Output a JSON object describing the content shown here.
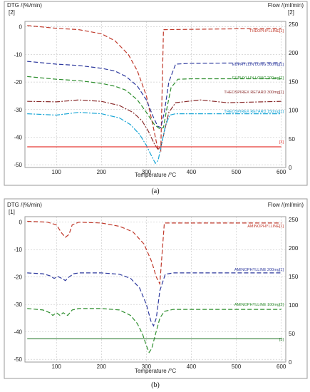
{
  "chart_data": [
    {
      "panel_label": "(a)",
      "type": "line",
      "y_left_title": "DTG /(%/min)",
      "y_left_marker": "[2]",
      "y_right_title": "Flow /(ml/min)",
      "y_right_marker": "[2]",
      "x_title": "Temperature /°C",
      "x_ticks": [
        "100",
        "200",
        "300",
        "400",
        "500",
        "600"
      ],
      "y_left_ticks": [
        "0",
        "-10",
        "-20",
        "-30",
        "-40",
        "-50"
      ],
      "y_right_ticks": [
        "250",
        "200",
        "150",
        "100",
        "50",
        "0"
      ],
      "xlim": [
        30,
        610
      ],
      "ylim": [
        -51,
        2
      ],
      "y_right_lim": [
        0,
        255
      ],
      "grid": true,
      "series": [
        {
          "name": "THEOPHYLLINE[1]",
          "color": "#c0392b",
          "dash": "6,3",
          "x": [
            35,
            100,
            150,
            200,
            230,
            260,
            280,
            300,
            315,
            325,
            332,
            338,
            600
          ],
          "y": [
            0.5,
            -0.5,
            -1.0,
            -2.5,
            -5,
            -10,
            -16,
            -25,
            -36,
            -44,
            -45,
            -1,
            -0.5
          ]
        },
        {
          "name": "EUPHYLLIN LONG 300mg[1]",
          "color": "#2e3a9e",
          "dash": "6,3",
          "x": [
            35,
            100,
            150,
            200,
            230,
            255,
            280,
            300,
            315,
            325,
            332,
            340,
            350,
            365,
            400,
            600
          ],
          "y": [
            -12.5,
            -13.5,
            -14.0,
            -15.0,
            -16.0,
            -18.0,
            -21.5,
            -26.5,
            -32.5,
            -36.0,
            -36.5,
            -31.0,
            -20.0,
            -13.5,
            -13.2,
            -13.0
          ]
        },
        {
          "name": "EUPHYLLIN LONG 200mg[1]",
          "color": "#2f8f2f",
          "dash": "6,3",
          "x": [
            35,
            100,
            150,
            200,
            230,
            255,
            280,
            300,
            318,
            330,
            338,
            345,
            355,
            370,
            400,
            600
          ],
          "y": [
            -18.0,
            -19.0,
            -19.5,
            -20.5,
            -21.5,
            -23.0,
            -26.5,
            -31.0,
            -35.5,
            -37.0,
            -36.5,
            -30.0,
            -22.0,
            -19.0,
            -18.8,
            -18.8
          ]
        },
        {
          "name": "THEOSPIREX RETARD 300mg[1]",
          "color": "#8b2e2e",
          "dash": "7,2,2,2",
          "x": [
            35,
            100,
            150,
            200,
            240,
            270,
            290,
            305,
            318,
            326,
            333,
            340,
            350,
            365,
            420,
            480,
            600
          ],
          "y": [
            -27.0,
            -27.2,
            -26.5,
            -27.0,
            -28.5,
            -31.0,
            -34.0,
            -38.0,
            -42.5,
            -44.5,
            -43.0,
            -38.0,
            -31.0,
            -27.5,
            -26.5,
            -27.5,
            -27.0
          ]
        },
        {
          "name": "THEOSPIREX RETARD 150mg[1]",
          "color": "#1aa6d6",
          "dash": "7,2,2,2",
          "x": [
            35,
            100,
            150,
            200,
            240,
            265,
            285,
            300,
            312,
            320,
            326,
            334,
            342,
            352,
            365,
            420,
            600
          ],
          "y": [
            -31.5,
            -32.0,
            -31.0,
            -31.5,
            -33.0,
            -35.5,
            -39.0,
            -43.0,
            -47.0,
            -49.5,
            -48.5,
            -42.5,
            -36.0,
            -32.0,
            -31.5,
            -31.5,
            -31.5
          ]
        },
        {
          "name": "[3]",
          "color": "#e53935",
          "dash": "",
          "x": [
            35,
            600
          ],
          "y": [
            -43.5,
            -43.5
          ]
        }
      ]
    },
    {
      "panel_label": "(b)",
      "type": "line",
      "y_left_title": "DTG /(%/min)",
      "y_left_marker": "[1]",
      "y_right_title": "Flow /(ml/min)",
      "y_right_marker": "",
      "x_title": "Temperature /°C",
      "x_ticks": [
        "100",
        "200",
        "300",
        "400",
        "500",
        "600"
      ],
      "y_left_ticks": [
        "0",
        "-10",
        "-20",
        "-30",
        "-40",
        "-50"
      ],
      "y_right_ticks": [
        "250",
        "200",
        "150",
        "100",
        "50",
        "0"
      ],
      "xlim": [
        30,
        610
      ],
      "ylim": [
        -51,
        2
      ],
      "y_right_lim": [
        0,
        255
      ],
      "grid": true,
      "series": [
        {
          "name": "AMINOPHYLLINE[1]",
          "color": "#c0392b",
          "dash": "6,3",
          "x": [
            35,
            80,
            100,
            112,
            120,
            128,
            135,
            150,
            200,
            240,
            270,
            295,
            312,
            322,
            330,
            340,
            600
          ],
          "y": [
            0.3,
            0.0,
            -1.0,
            -4.0,
            -5.5,
            -4.5,
            -1.0,
            0.0,
            -0.3,
            -1.5,
            -3.5,
            -8.0,
            -14.5,
            -20.0,
            -22.5,
            -0.3,
            -0.3
          ]
        },
        {
          "name": "AMINOPHYLLINE 200mg[1]",
          "color": "#2e3a9e",
          "dash": "6,3",
          "x": [
            35,
            70,
            85,
            95,
            103,
            112,
            120,
            128,
            138,
            150,
            200,
            240,
            265,
            285,
            300,
            310,
            316,
            322,
            330,
            342,
            360,
            600
          ],
          "y": [
            -18.5,
            -18.8,
            -19.5,
            -20.5,
            -19.8,
            -20.5,
            -21.3,
            -20.0,
            -18.8,
            -18.5,
            -18.5,
            -19.0,
            -20.5,
            -24.0,
            -30.0,
            -36.0,
            -37.8,
            -35.0,
            -25.0,
            -19.0,
            -18.5,
            -18.5
          ]
        },
        {
          "name": "AMINOPHYLLINE 100mg[2]",
          "color": "#2f8f2f",
          "dash": "6,3",
          "x": [
            35,
            70,
            85,
            92,
            100,
            108,
            115,
            125,
            135,
            150,
            200,
            240,
            265,
            280,
            292,
            300,
            306,
            312,
            320,
            330,
            340,
            360,
            600
          ],
          "y": [
            -31.5,
            -32.0,
            -33.0,
            -34.0,
            -33.0,
            -34.0,
            -33.0,
            -34.0,
            -32.0,
            -31.5,
            -31.5,
            -32.0,
            -34.0,
            -37.0,
            -41.0,
            -45.0,
            -47.5,
            -46.0,
            -41.0,
            -35.0,
            -32.5,
            -31.8,
            -31.8
          ]
        },
        {
          "name": "[3]",
          "color": "#2e7d32",
          "dash": "",
          "x": [
            35,
            600
          ],
          "y": [
            -42.5,
            -42.5
          ]
        }
      ]
    }
  ]
}
